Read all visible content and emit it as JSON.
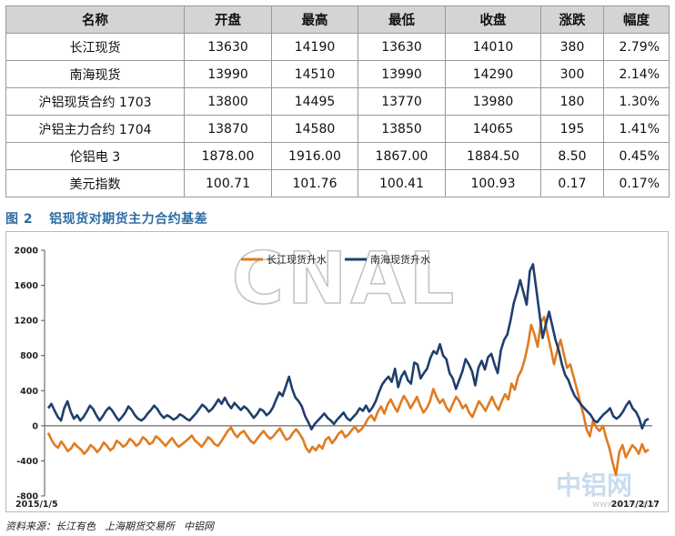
{
  "table": {
    "headers": [
      "名称",
      "开盘",
      "最高",
      "最低",
      "收盘",
      "涨跌",
      "幅度"
    ],
    "rows": [
      [
        "长江现货",
        "13630",
        "14190",
        "13630",
        "14010",
        "380",
        "2.79%"
      ],
      [
        "南海现货",
        "13990",
        "14510",
        "13990",
        "14290",
        "300",
        "2.14%"
      ],
      [
        "沪铝现货合约 1703",
        "13800",
        "14495",
        "13770",
        "13980",
        "180",
        "1.30%"
      ],
      [
        "沪铝主力合约 1704",
        "13870",
        "14580",
        "13850",
        "14065",
        "195",
        "1.41%"
      ],
      [
        "伦铝电 3",
        "1878.00",
        "1916.00",
        "1867.00",
        "1884.50",
        "8.50",
        "0.45%"
      ],
      [
        "美元指数",
        "100.71",
        "101.76",
        "100.41",
        "100.93",
        "0.17",
        "0.17%"
      ]
    ]
  },
  "figure": {
    "number": "图 2",
    "title": "铝现货对期货主力合约基差"
  },
  "source": [
    "资料来源：长江有色",
    "上海期货交易所",
    "中铝网"
  ],
  "watermark": {
    "text": "CNAL",
    "logo": "中铝网",
    "url": "www.cnal.com"
  },
  "colors": {
    "changjiang": "#e07b21",
    "nanhai": "#1f3f6e",
    "header_bg": "#d4d4d4",
    "caption": "#2e6da4"
  },
  "chart_data": {
    "type": "line",
    "title": "",
    "xlabel": "",
    "ylabel": "",
    "x_start_label": "2015/1/5",
    "x_end_label": "2017/2/17",
    "ylim": [
      -800,
      2000
    ],
    "yticks": [
      -800,
      -400,
      0,
      400,
      800,
      1200,
      1600,
      2000
    ],
    "grid": false,
    "legend_position": "top-center",
    "series": [
      {
        "name": "长江现货升水",
        "color": "#e07b21",
        "values": [
          -80,
          -160,
          -220,
          -250,
          -180,
          -230,
          -290,
          -260,
          -200,
          -240,
          -270,
          -320,
          -280,
          -220,
          -250,
          -300,
          -260,
          -190,
          -230,
          -280,
          -250,
          -170,
          -200,
          -240,
          -210,
          -150,
          -180,
          -230,
          -200,
          -130,
          -160,
          -210,
          -190,
          -120,
          -150,
          -190,
          -230,
          -180,
          -140,
          -200,
          -240,
          -210,
          -180,
          -150,
          -110,
          -170,
          -200,
          -240,
          -190,
          -130,
          -160,
          -210,
          -230,
          -180,
          -120,
          -60,
          -20,
          -90,
          -130,
          -80,
          -60,
          -120,
          -170,
          -200,
          -150,
          -100,
          -60,
          -110,
          -150,
          -120,
          -70,
          -30,
          -100,
          -160,
          -140,
          -80,
          -40,
          -90,
          -150,
          -250,
          -300,
          -240,
          -280,
          -220,
          -260,
          -160,
          -130,
          -200,
          -150,
          -90,
          -60,
          -130,
          -100,
          -50,
          -10,
          -70,
          -40,
          10,
          80,
          120,
          60,
          160,
          220,
          140,
          240,
          300,
          220,
          160,
          260,
          340,
          280,
          200,
          260,
          330,
          230,
          150,
          200,
          280,
          420,
          330,
          260,
          300,
          210,
          160,
          250,
          330,
          280,
          200,
          240,
          150,
          100,
          190,
          280,
          230,
          170,
          250,
          330,
          240,
          180,
          280,
          360,
          300,
          480,
          410,
          560,
          630,
          750,
          920,
          1150,
          1040,
          900,
          1180,
          1240,
          1050,
          880,
          700,
          860,
          980,
          820,
          660,
          700,
          560,
          420,
          270,
          130,
          -40,
          -120,
          60,
          -20,
          -60,
          0,
          -140,
          -260,
          -420,
          -560,
          -300,
          -220,
          -360,
          -290,
          -220,
          -260,
          -320,
          -210,
          -300,
          -270
        ]
      },
      {
        "name": "南海现货升水",
        "color": "#1f3f6e",
        "values": [
          200,
          250,
          170,
          100,
          60,
          200,
          280,
          160,
          80,
          120,
          60,
          100,
          160,
          230,
          190,
          120,
          60,
          110,
          170,
          210,
          170,
          110,
          60,
          100,
          150,
          220,
          180,
          120,
          80,
          60,
          90,
          140,
          180,
          230,
          190,
          130,
          90,
          120,
          100,
          70,
          90,
          130,
          110,
          80,
          60,
          100,
          140,
          190,
          240,
          210,
          160,
          190,
          240,
          300,
          250,
          320,
          250,
          200,
          260,
          220,
          180,
          220,
          190,
          140,
          90,
          130,
          190,
          170,
          120,
          150,
          210,
          300,
          380,
          340,
          450,
          560,
          420,
          320,
          280,
          220,
          110,
          40,
          -40,
          20,
          60,
          100,
          140,
          90,
          60,
          20,
          70,
          110,
          150,
          90,
          60,
          100,
          140,
          200,
          170,
          230,
          160,
          210,
          280,
          380,
          470,
          520,
          560,
          500,
          650,
          440,
          560,
          620,
          520,
          480,
          720,
          700,
          540,
          600,
          650,
          770,
          850,
          820,
          930,
          800,
          760,
          600,
          540,
          420,
          520,
          620,
          760,
          700,
          620,
          460,
          660,
          740,
          640,
          780,
          820,
          700,
          600,
          860,
          980,
          1040,
          1200,
          1400,
          1520,
          1660,
          1520,
          1380,
          1760,
          1840,
          1560,
          1280,
          1000,
          1160,
          1300,
          1140,
          980,
          860,
          700,
          580,
          520,
          420,
          340,
          290,
          240,
          200,
          160,
          120,
          60,
          40,
          90,
          130,
          160,
          200,
          110,
          80,
          110,
          160,
          230,
          280,
          200,
          160,
          90,
          -30,
          60,
          80
        ]
      }
    ]
  }
}
